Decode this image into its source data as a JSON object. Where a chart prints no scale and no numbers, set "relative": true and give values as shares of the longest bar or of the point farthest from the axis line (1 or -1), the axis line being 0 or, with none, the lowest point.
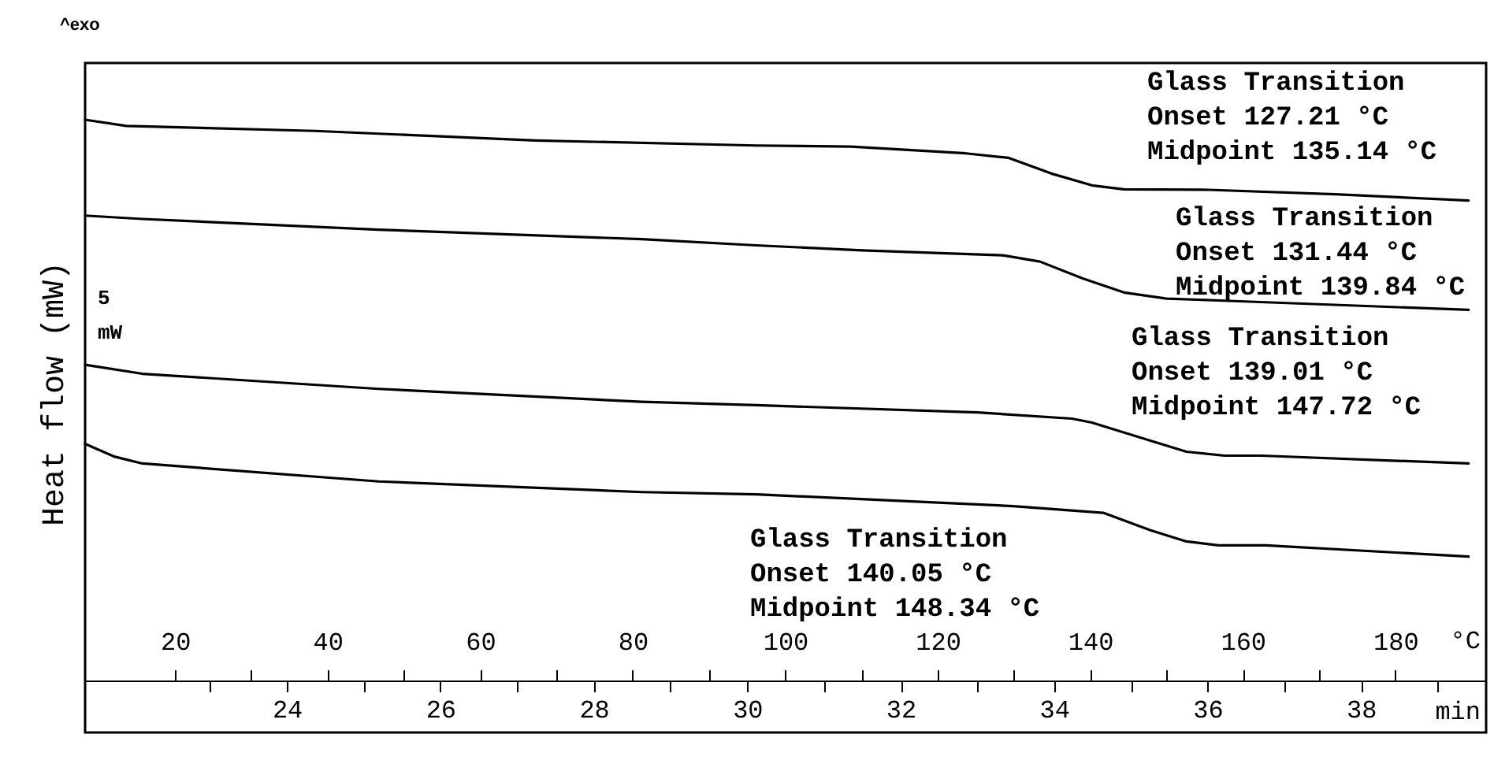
{
  "chart_data": {
    "type": "line",
    "relative": true,
    "ylabel": "Heat flow (mW)",
    "xlabel": "°C",
    "x2label": "min",
    "xlim": [
      8.2,
      191.9
    ],
    "xticks": [
      20,
      {
        "value": 30,
        "label": null
      },
      40,
      {
        "value": 50,
        "label": null
      },
      60,
      {
        "value": 70,
        "label": null
      },
      80,
      {
        "value": 90,
        "label": null
      },
      100,
      {
        "value": 110,
        "label": null
      },
      120,
      {
        "value": 130,
        "label": null
      },
      140,
      {
        "value": 150,
        "label": null
      },
      160,
      {
        "value": 170,
        "label": null
      },
      180
    ],
    "x2lim": [
      21.37,
      39.63
    ],
    "x2ticks": [
      {
        "value": 23,
        "label": null
      },
      24,
      {
        "value": 25,
        "label": null
      },
      26,
      {
        "value": 27,
        "label": null
      },
      28,
      {
        "value": 29,
        "label": null
      },
      30,
      {
        "value": 31,
        "label": null
      },
      32,
      {
        "value": 33,
        "label": null
      },
      34,
      {
        "value": 35,
        "label": null
      },
      36,
      {
        "value": 37,
        "label": null
      },
      38,
      {
        "value": 39,
        "label": null
      }
    ],
    "annotations": [
      "^exo",
      "5\nmW",
      "Glass Transition\nOnset    127.21 °C\nMidpoint 135.14 °C",
      "Glass Transition\nOnset    131.44 °C\nMidpoint 139.84 °C",
      "Glass Transition\nOnset    139.01 °C\nMidpoint 147.72 °C",
      "Glass Transition\nOnset    140.05 °C\nMidpoint 148.34 °C"
    ],
    "series": [
      {
        "color": "#000000",
        "x": [
          8.2,
          13.6,
          38.4,
          67.3,
          96.2,
          108.6,
          123.7,
          129.3,
          134.9,
          140.2,
          144.4,
          155.5,
          172.1,
          189.6
        ],
        "values": [
          1.0,
          0.989,
          0.98,
          0.963,
          0.954,
          0.952,
          0.94,
          0.932,
          0.904,
          0.883,
          0.876,
          0.875,
          0.867,
          0.856
        ]
      },
      {
        "color": "#000000",
        "x": [
          8.2,
          15.7,
          46.7,
          81.2,
          96.2,
          110.1,
          128.7,
          133.4,
          139.0,
          144.4,
          150.0,
          158.2,
          189.6
        ],
        "values": [
          0.829,
          0.823,
          0.804,
          0.787,
          0.776,
          0.767,
          0.758,
          0.747,
          0.717,
          0.692,
          0.681,
          0.677,
          0.661
        ]
      },
      {
        "color": "#000000",
        "x": [
          8.2,
          15.7,
          46.7,
          81.2,
          96.2,
          125.2,
          137.6,
          140.2,
          147.3,
          152.6,
          157.6,
          162.4,
          189.6
        ],
        "values": [
          0.563,
          0.547,
          0.52,
          0.497,
          0.491,
          0.478,
          0.467,
          0.46,
          0.43,
          0.408,
          0.401,
          0.401,
          0.387
        ]
      },
      {
        "color": "#000000",
        "x": [
          8.2,
          12.1,
          15.7,
          46.7,
          81.2,
          96.2,
          129.9,
          141.7,
          147.9,
          152.6,
          156.8,
          163.0,
          189.6
        ],
        "values": [
          0.422,
          0.399,
          0.387,
          0.355,
          0.336,
          0.332,
          0.311,
          0.299,
          0.268,
          0.248,
          0.241,
          0.241,
          0.221
        ]
      }
    ]
  }
}
